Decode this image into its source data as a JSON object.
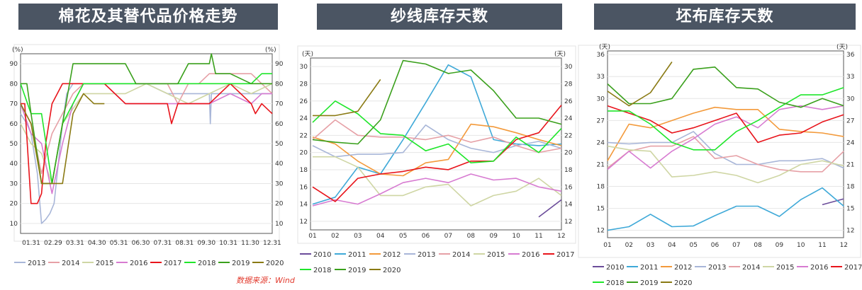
{
  "panels": [
    {
      "title": "棉花及其替代品价格走势"
    },
    {
      "title": "纱线库存天数"
    },
    {
      "title": "坯布库存天数"
    }
  ],
  "source": "数据来源：Wind",
  "colors": {
    "2010": "#6b4c9a",
    "2011": "#3fa9d8",
    "2012": "#f39a3b",
    "2013": "#a8b6d8",
    "2014": "#e6a0a6",
    "2015": "#cfd6a4",
    "2016": "#d77bd1",
    "2017": "#e8141b",
    "2018": "#1fe62b",
    "2019": "#3aa01c",
    "2020": "#8a7a13"
  },
  "chart_data": [
    {
      "type": "line",
      "title": "棉花及其替代品价格走势",
      "left_unit": "(%)",
      "right_unit": "(%)",
      "ylim": [
        5,
        95
      ],
      "yticks": [
        10,
        20,
        30,
        40,
        50,
        60,
        70,
        80,
        90
      ],
      "categories": [
        "01.31",
        "02.29",
        "03.31",
        "04.30",
        "05.31",
        "06.30",
        "07.31",
        "08.31",
        "09.30",
        "10.31",
        "11.30",
        "12.31"
      ],
      "legend": [
        "2013",
        "2014",
        "2015",
        "2016",
        "2017",
        "2018",
        "2019",
        "2020"
      ],
      "series": [
        {
          "name": "2013",
          "x": [
            0,
            0.3,
            0.5,
            0.8,
            1.0,
            1.2,
            1.4,
            1.6,
            2.0,
            2.2,
            2.5,
            3.0,
            4,
            5,
            6,
            7,
            8,
            8.8,
            9.0,
            9.05,
            9.1,
            10,
            11,
            11.5,
            12
          ],
          "y": [
            65,
            60,
            55,
            35,
            10,
            12,
            15,
            20,
            60,
            75,
            80,
            80,
            80,
            80,
            80,
            75,
            75,
            75,
            75,
            60,
            75,
            75,
            75,
            75,
            75
          ]
        },
        {
          "name": "2014",
          "x": [
            0,
            0.5,
            1.0,
            1.5,
            2.0,
            2.5,
            3.0,
            4,
            5,
            6,
            7,
            7.5,
            8,
            8.5,
            9,
            10,
            11,
            11.5,
            12
          ],
          "y": [
            70,
            60,
            35,
            55,
            65,
            75,
            80,
            80,
            80,
            80,
            80,
            70,
            80,
            80,
            85,
            85,
            85,
            80,
            75
          ]
        },
        {
          "name": "2015",
          "x": [
            0,
            0.5,
            1.0,
            1.5,
            2.0,
            3.0,
            4,
            5,
            6,
            7,
            8,
            9,
            10,
            11,
            12
          ],
          "y": [
            60,
            50,
            45,
            30,
            60,
            75,
            75,
            75,
            80,
            75,
            70,
            75,
            80,
            75,
            80
          ]
        },
        {
          "name": "2016",
          "x": [
            0,
            0.5,
            1.0,
            1.5,
            2.0,
            2.5,
            3.0,
            4,
            5,
            6,
            7,
            8,
            9,
            10,
            11,
            11.5,
            12
          ],
          "y": [
            70,
            55,
            50,
            25,
            50,
            70,
            80,
            80,
            70,
            70,
            70,
            70,
            70,
            75,
            70,
            75,
            75
          ]
        },
        {
          "name": "2017",
          "x": [
            0,
            0.2,
            0.5,
            0.8,
            1.0,
            1.2,
            1.5,
            2.0,
            2.5,
            3.0,
            4,
            5,
            6,
            7,
            7.2,
            7.5,
            8,
            9,
            10,
            11,
            11.2,
            11.5,
            12
          ],
          "y": [
            70,
            70,
            20,
            20,
            25,
            50,
            70,
            80,
            80,
            80,
            80,
            70,
            70,
            70,
            60,
            70,
            70,
            70,
            80,
            70,
            65,
            70,
            65
          ]
        },
        {
          "name": "2018",
          "x": [
            0,
            0.5,
            1.0,
            1.5,
            2.0,
            3,
            4,
            5,
            6,
            7,
            8,
            9,
            10,
            11,
            11.5,
            12
          ],
          "y": [
            80,
            65,
            65,
            30,
            60,
            80,
            80,
            80,
            80,
            80,
            80,
            80,
            80,
            80,
            85,
            85
          ]
        },
        {
          "name": "2019",
          "x": [
            0,
            0.3,
            0.5,
            1.0,
            1.5,
            2.0,
            2.5,
            3.0,
            4,
            5,
            5.5,
            6,
            7,
            7.5,
            8,
            8.5,
            9,
            9.1,
            9.3,
            10,
            11,
            12
          ],
          "y": [
            80,
            80,
            65,
            30,
            30,
            60,
            90,
            90,
            90,
            90,
            80,
            80,
            80,
            80,
            90,
            90,
            90,
            95,
            85,
            85,
            80,
            80
          ]
        },
        {
          "name": "2020",
          "x": [
            0,
            0.5,
            1.0,
            1.5,
            2.0,
            2.5,
            3.0,
            3.5,
            4.0
          ],
          "y": [
            70,
            60,
            30,
            30,
            30,
            65,
            75,
            70,
            70
          ]
        }
      ]
    },
    {
      "type": "line",
      "title": "纱线库存天数",
      "left_unit": "(天)",
      "right_unit": "(天)",
      "ylim": [
        11,
        31
      ],
      "yticks": [
        12,
        14,
        16,
        18,
        20,
        22,
        24,
        26,
        28,
        30
      ],
      "categories": [
        "01",
        "02",
        "03",
        "04",
        "05",
        "06",
        "07",
        "08",
        "09",
        "10",
        "11",
        "12"
      ],
      "legend": [
        "2010",
        "2011",
        "2012",
        "2013",
        "2014",
        "2015",
        "2016",
        "2017",
        "2018",
        "2019",
        "2020"
      ],
      "series": [
        {
          "name": "2010",
          "x": [
            11,
            12
          ],
          "y": [
            12.5,
            14.5
          ]
        },
        {
          "name": "2011",
          "x": [
            1,
            2,
            3,
            4,
            5,
            6,
            7,
            8,
            9,
            10,
            11,
            12
          ],
          "y": [
            14,
            14.8,
            18.3,
            17.5,
            21.5,
            25.8,
            30.2,
            28.8,
            21.5,
            21,
            20.8,
            21
          ]
        },
        {
          "name": "2012",
          "x": [
            1,
            2,
            3,
            4,
            5,
            6,
            7,
            8,
            9,
            10,
            11,
            12
          ],
          "y": [
            21.8,
            21,
            19,
            17.5,
            17.3,
            18.8,
            19.2,
            23.3,
            23,
            22.3,
            21.5,
            20.8
          ]
        },
        {
          "name": "2013",
          "x": [
            1,
            2,
            3,
            4,
            5,
            6,
            7,
            8,
            9,
            10,
            11,
            12
          ],
          "y": [
            20.8,
            19.5,
            19.8,
            19.8,
            20,
            23.2,
            21.5,
            20.5,
            20,
            20.8,
            21.3,
            20.5
          ]
        },
        {
          "name": "2014",
          "x": [
            1,
            2,
            3,
            4,
            5,
            6,
            7,
            8,
            9,
            10,
            11,
            12
          ],
          "y": [
            21.5,
            23.8,
            22,
            21.8,
            21.8,
            21.5,
            22,
            21.2,
            21.8,
            20.8,
            20,
            20.5
          ]
        },
        {
          "name": "2015",
          "x": [
            1,
            2,
            3,
            4,
            5,
            6,
            7,
            8,
            9,
            10,
            11,
            12
          ],
          "y": [
            19.5,
            19.5,
            18.3,
            15,
            15,
            16,
            16.3,
            13.8,
            15,
            15.5,
            17,
            15
          ]
        },
        {
          "name": "2016",
          "x": [
            1,
            2,
            3,
            4,
            5,
            6,
            7,
            8,
            9,
            10,
            11,
            12
          ],
          "y": [
            13.8,
            14.5,
            14,
            15.2,
            16.5,
            17,
            16.5,
            17.5,
            16.8,
            17,
            16,
            15.5
          ]
        },
        {
          "name": "2017",
          "x": [
            1,
            2,
            3,
            4,
            5,
            6,
            7,
            8,
            9,
            10,
            11,
            12
          ],
          "y": [
            16,
            14.3,
            17,
            17.5,
            17.8,
            18.3,
            18,
            19,
            19,
            21.5,
            22.3,
            25.5
          ]
        },
        {
          "name": "2018",
          "x": [
            1,
            2,
            3,
            4,
            5,
            6,
            7,
            8,
            9,
            10,
            11,
            12
          ],
          "y": [
            23.5,
            26,
            24.5,
            22.2,
            22,
            20.2,
            21,
            18.8,
            19,
            21.8,
            20,
            22.8
          ]
        },
        {
          "name": "2019",
          "x": [
            1,
            2,
            3,
            4,
            5,
            6,
            7,
            8,
            9,
            10,
            11,
            12
          ],
          "y": [
            21.5,
            21.2,
            21,
            23.8,
            30.7,
            30.3,
            29.2,
            29.6,
            27.2,
            24,
            24,
            23.3
          ]
        },
        {
          "name": "2020",
          "x": [
            1,
            2,
            3,
            4
          ],
          "y": [
            24.3,
            24.3,
            24.8,
            28.5
          ]
        }
      ]
    },
    {
      "type": "line",
      "title": "坯布库存天数",
      "left_unit": "(天)",
      "right_unit": "(天)",
      "ylim": [
        11,
        36.5
      ],
      "yticks": [
        12,
        15,
        18,
        21,
        24,
        27,
        30,
        33,
        36
      ],
      "categories": [
        "01",
        "02",
        "03",
        "04",
        "05",
        "06",
        "07",
        "08",
        "09",
        "10",
        "11",
        "12"
      ],
      "legend": [
        "2010",
        "2011",
        "2012",
        "2013",
        "2014",
        "2015",
        "2016",
        "2017",
        "2018",
        "2019",
        "2020"
      ],
      "series": [
        {
          "name": "2010",
          "x": [
            11,
            12
          ],
          "y": [
            15.5,
            16.3
          ]
        },
        {
          "name": "2011",
          "x": [
            1,
            2,
            3,
            4,
            5,
            6,
            7,
            8,
            9,
            10,
            11,
            12
          ],
          "y": [
            12,
            12.5,
            14.2,
            12.5,
            12.6,
            14,
            15.3,
            15.3,
            13.9,
            16.2,
            17.8,
            15.3
          ]
        },
        {
          "name": "2012",
          "x": [
            1,
            2,
            3,
            4,
            5,
            6,
            7,
            8,
            9,
            10,
            11,
            12
          ],
          "y": [
            21.5,
            26.5,
            26,
            27,
            28,
            28.8,
            28.5,
            28.5,
            25.8,
            25.5,
            25.3,
            24.8
          ]
        },
        {
          "name": "2013",
          "x": [
            1,
            2,
            3,
            4,
            5,
            6,
            7,
            8,
            9,
            10,
            11,
            12
          ],
          "y": [
            24,
            23.8,
            24,
            24,
            25.5,
            22.5,
            21,
            21,
            21.5,
            21.5,
            21.8,
            20.5
          ]
        },
        {
          "name": "2014",
          "x": [
            1,
            2,
            3,
            4,
            5,
            6,
            7,
            8,
            9,
            10,
            11,
            12
          ],
          "y": [
            20.5,
            22.8,
            23.5,
            23.5,
            24.8,
            21.8,
            22.2,
            21,
            20.3,
            20,
            20,
            22.8
          ]
        },
        {
          "name": "2015",
          "x": [
            1,
            2,
            3,
            4,
            5,
            6,
            7,
            8,
            9,
            10,
            11,
            12
          ],
          "y": [
            23.5,
            23,
            22.8,
            19.3,
            19.5,
            20,
            19.5,
            18.5,
            19.5,
            21,
            21.5,
            20.8
          ]
        },
        {
          "name": "2016",
          "x": [
            1,
            2,
            3,
            4,
            5,
            6,
            7,
            8,
            9,
            10,
            11,
            12
          ],
          "y": [
            20.3,
            22.8,
            20.5,
            22.8,
            24.5,
            26.5,
            27.5,
            26,
            28.5,
            29,
            28.5,
            29
          ]
        },
        {
          "name": "2017",
          "x": [
            1,
            2,
            3,
            4,
            5,
            6,
            7,
            8,
            9,
            10,
            11,
            12
          ],
          "y": [
            29,
            28,
            27,
            25.3,
            26,
            27,
            28,
            24,
            25,
            25.3,
            26.8,
            27.8
          ]
        },
        {
          "name": "2018",
          "x": [
            1,
            2,
            3,
            4,
            5,
            6,
            7,
            8,
            9,
            10,
            11,
            12
          ],
          "y": [
            28.3,
            28.3,
            26.5,
            24,
            23,
            23,
            25.5,
            27,
            28.8,
            30.5,
            30.5,
            31.5
          ]
        },
        {
          "name": "2019",
          "x": [
            1,
            2,
            3,
            4,
            5,
            6,
            7,
            8,
            9,
            10,
            11,
            12
          ],
          "y": [
            32,
            29.3,
            29.3,
            30,
            34,
            34.3,
            31.5,
            31.3,
            29.5,
            28.8,
            30,
            29
          ]
        },
        {
          "name": "2020",
          "x": [
            1,
            2,
            3,
            4
          ],
          "y": [
            31,
            29,
            30.8,
            35
          ]
        }
      ]
    }
  ]
}
